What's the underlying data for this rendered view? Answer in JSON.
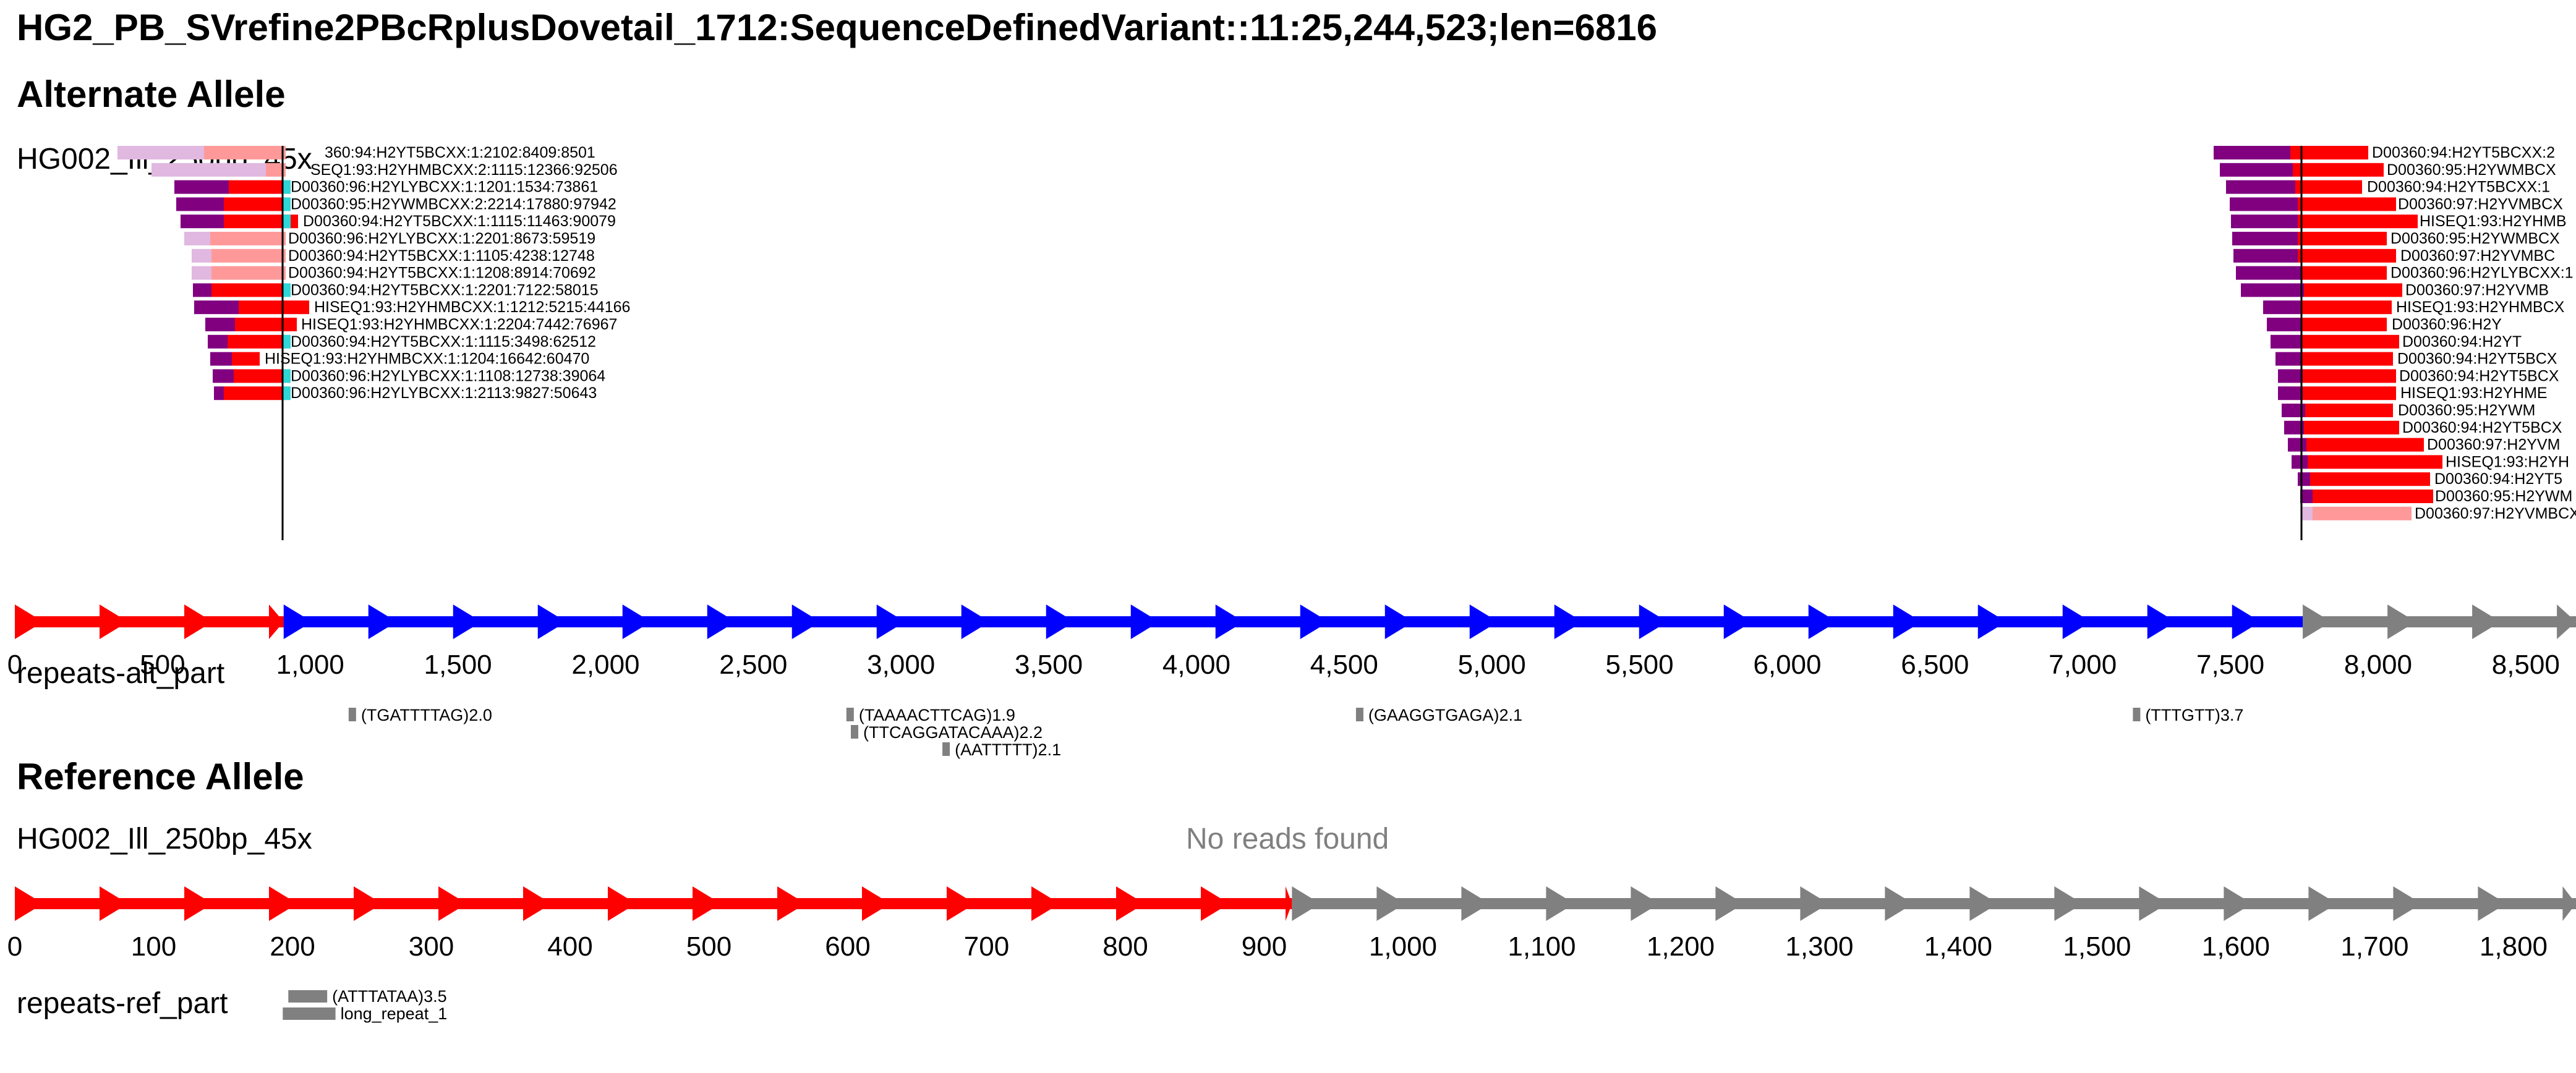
{
  "title": "HG2_PB_SVrefine2PBcRplusDovetail_1712:SequenceDefinedVariant::11:25,244,523;len=6816",
  "colors": {
    "segment_red": "#ff0000",
    "segment_blue": "#0000ff",
    "segment_gray": "#808080",
    "read_purple": "#800080",
    "read_red": "#ff0000",
    "read_pink": "#ff9999",
    "read_lavender": "#e0b8e0",
    "read_cyan": "#30d5d5",
    "repeat_gray": "#808080",
    "no_reads_gray": "#808080"
  },
  "alt": {
    "section_title": "Alternate Allele",
    "track_label": "HG002_Ill_250bp_45x",
    "axis": {
      "ticks": [
        "0",
        "500",
        "1,000",
        "1,500",
        "2,000",
        "2,500",
        "3,000",
        "3,500",
        "4,000",
        "4,500",
        "5,000",
        "5,500",
        "6,000",
        "6,500",
        "7,000",
        "7,500",
        "8,000",
        "8,500"
      ],
      "tick_values": [
        0,
        500,
        1000,
        1500,
        2000,
        2500,
        3000,
        3500,
        4000,
        4500,
        5000,
        5500,
        6000,
        6500,
        7000,
        7500,
        8000,
        8500
      ],
      "range": [
        0,
        8670
      ]
    },
    "segments": [
      {
        "start": 0,
        "end": 910,
        "color": "segment_red"
      },
      {
        "start": 910,
        "end": 7745,
        "color": "segment_blue"
      },
      {
        "start": 7745,
        "end": 8670,
        "color": "segment_gray"
      }
    ],
    "breakpoints": [
      910,
      7745
    ],
    "left_reads": [
      "360:94:H2YT5BCXX:1:2102:8409:8501",
      "SEQ1:93:H2YHMBCXX:2:1115:12366:92506",
      "D00360:96:H2YLYBCXX:1:1201:1534:73861",
      "D00360:95:H2YWMBCXX:2:2214:17880:97942",
      "D00360:94:H2YT5BCXX:1:1115:11463:90079",
      "D00360:96:H2YLYBCXX:1:2201:8673:59519",
      "D00360:94:H2YT5BCXX:1:1105:4238:12748",
      "D00360:94:H2YT5BCXX:1:1208:8914:70692",
      "D00360:94:H2YT5BCXX:1:2201:7122:58015",
      "HISEQ1:93:H2YHMBCXX:1:1212:5215:44166",
      "HISEQ1:93:H2YHMBCXX:1:2204:7442:76967",
      "D00360:94:H2YT5BCXX:1:1115:3498:62512",
      "HISEQ1:93:H2YHMBCXX:1:1204:16642:60470",
      "D00360:96:H2YLYBCXX:1:1108:12738:39064",
      "D00360:96:H2YLYBCXX:1:2113:9827:50643"
    ],
    "right_reads": [
      "D00360:94:H2YT5BCXX:2",
      "D00360:95:H2YWMBCX",
      "D00360:94:H2YT5BCXX:1",
      "D00360:97:H2YVMBCX",
      "HISEQ1:93:H2YHMB",
      "D00360:95:H2YWMBCX",
      "D00360:97:H2YVMBC",
      "D00360:96:H2YLYBCXX:1",
      "D00360:97:H2YVMB",
      "HISEQ1:93:H2YHMBCX",
      "D00360:96:H2Y",
      "D00360:94:H2YT",
      "D00360:94:H2YT5BCX",
      "D00360:94:H2YT5BCX",
      "HISEQ1:93:H2YHME",
      "D00360:95:H2YWM",
      "D00360:94:H2YT5BCX",
      "D00360:97:H2YVM",
      "HISEQ1:93:H2YH",
      "D00360:94:H2YT5",
      "D00360:95:H2YWM",
      "D00360:97:H2YVMBCX"
    ],
    "repeats_label": "repeats-alt_part",
    "repeats": [
      {
        "start": 1130,
        "end": 1145,
        "row": 0,
        "label": "(TGATTTTAG)2.0"
      },
      {
        "start": 2815,
        "end": 2830,
        "row": 0,
        "label": "(TAAAACTTCAG)1.9"
      },
      {
        "start": 2830,
        "end": 2845,
        "row": 1,
        "label": "(TTCAGGATACAAA)2.2"
      },
      {
        "start": 3140,
        "end": 3152,
        "row": 2,
        "label": "(AATTTTT)2.1"
      },
      {
        "start": 4540,
        "end": 4555,
        "row": 0,
        "label": "(GAAGGTGAGA)2.1"
      },
      {
        "start": 7170,
        "end": 7185,
        "row": 0,
        "label": "(TTTGTT)3.7"
      }
    ]
  },
  "ref": {
    "section_title": "Reference Allele",
    "track_label": "HG002_Ill_250bp_45x",
    "no_reads": "No reads found",
    "axis": {
      "ticks": [
        "0",
        "100",
        "200",
        "300",
        "400",
        "500",
        "600",
        "700",
        "800",
        "900",
        "1,000",
        "1,100",
        "1,200",
        "1,300",
        "1,400",
        "1,500",
        "1,600",
        "1,700",
        "1,800"
      ],
      "tick_values": [
        0,
        100,
        200,
        300,
        400,
        500,
        600,
        700,
        800,
        900,
        1000,
        1100,
        1200,
        1300,
        1400,
        1500,
        1600,
        1700,
        1800
      ],
      "range": [
        0,
        1845
      ]
    },
    "segments": [
      {
        "start": 0,
        "end": 920,
        "color": "segment_red"
      },
      {
        "start": 920,
        "end": 1845,
        "color": "segment_gray"
      }
    ],
    "repeats_label": "repeats-ref_part",
    "repeats": [
      {
        "start": 197,
        "end": 225,
        "row": 0,
        "label": "(ATTTATAA)3.5"
      },
      {
        "start": 193,
        "end": 231,
        "row": 1,
        "label": "long_repeat_1"
      }
    ]
  }
}
